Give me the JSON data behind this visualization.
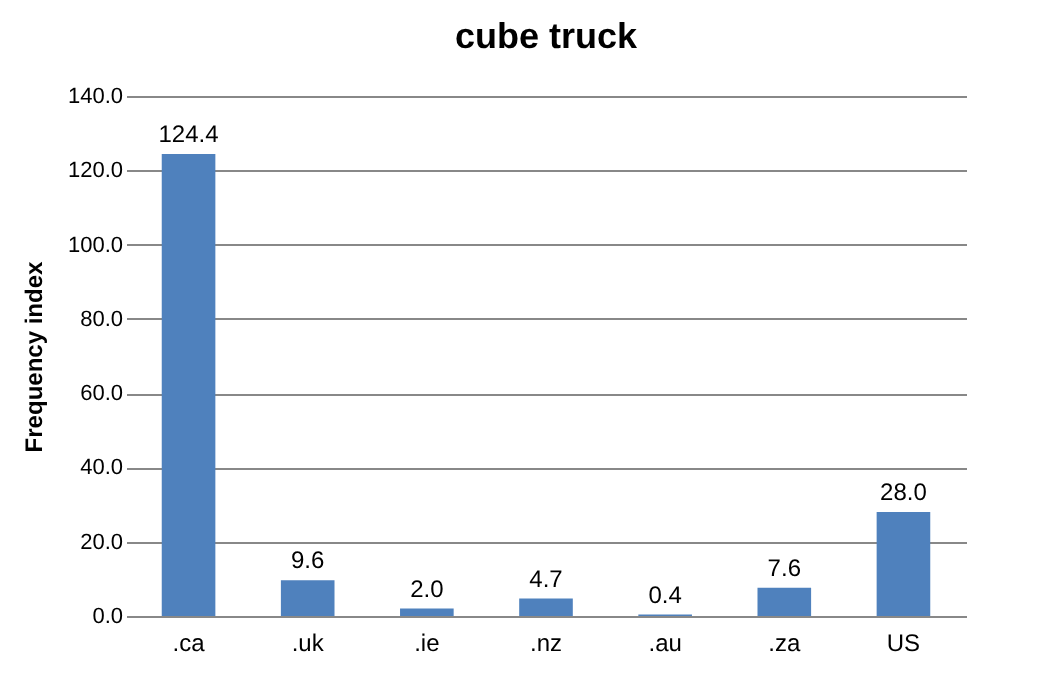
{
  "chart_data": {
    "type": "bar",
    "title": "cube truck",
    "ylabel": "Frequency index",
    "categories": [
      ".ca",
      ".uk",
      ".ie",
      ".nz",
      ".au",
      ".za",
      "US"
    ],
    "values": [
      124.4,
      9.6,
      2.0,
      4.7,
      0.4,
      7.6,
      28.0
    ],
    "color": "#4f81bd",
    "ylim": [
      0,
      140
    ],
    "yticks": [
      {
        "value": 0,
        "label": "0.0"
      },
      {
        "value": 20,
        "label": "20.0"
      },
      {
        "value": 40,
        "label": "40.0"
      },
      {
        "value": 60,
        "label": "60.0"
      },
      {
        "value": 80,
        "label": "80.0"
      },
      {
        "value": 100,
        "label": "100.0"
      },
      {
        "value": 120,
        "label": "120.0"
      },
      {
        "value": 140,
        "label": "140.0"
      }
    ],
    "grid": "y",
    "value_labels": [
      "124.4",
      "9.6",
      "2.0",
      "4.7",
      "0.4",
      "7.6",
      "28.0"
    ]
  }
}
